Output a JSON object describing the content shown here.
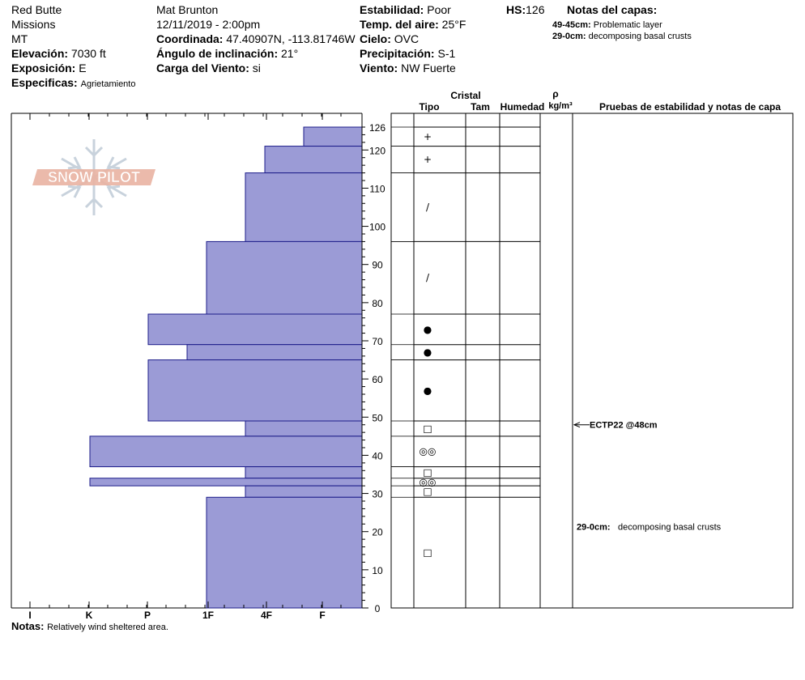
{
  "header": {
    "location": "Red Butte",
    "range": "Missions",
    "state": "MT",
    "elevation_label": "Elevación:",
    "elevation": "7030 ft",
    "aspect_label": "Exposición:",
    "aspect": "E",
    "specifics_label": "Especificas:",
    "specifics": "Agrietamiento",
    "observer": "Mat Brunton",
    "datetime": "12/11/2019 - 2:00pm",
    "coord_label": "Coordinada:",
    "coord": "47.40907N, -113.81746W",
    "slope_label": "Ángulo de inclinación:",
    "slope": "21°",
    "wind_load_label": "Carga del Viento:",
    "wind_load": "si",
    "stability_label": "Estabilidad:",
    "stability": "Poor",
    "air_temp_label": "Temp. del aire:",
    "air_temp": "25°F",
    "sky_label": "Cielo:",
    "sky": "OVC",
    "precip_label": "Precipitación:",
    "precip": "S-1",
    "wind_label": "Viento:",
    "wind": "NW Fuerte",
    "hs_label": "HS:",
    "hs": "126",
    "layer_notes_label": "Notas del capas:",
    "layer_notes": [
      {
        "depth": "49-45cm:",
        "text": "Problematic layer"
      },
      {
        "depth": "29-0cm:",
        "text": "decomposing basal crusts"
      }
    ]
  },
  "table_headers": {
    "crystal": "Cristal",
    "type": "Tipo",
    "size": "Tam",
    "moisture": "Humedad",
    "density_symbol": "ρ",
    "density_unit": "kg/m³",
    "tests": "Pruebas de estabilidad y notas de capa"
  },
  "logo_text": "SNOW PILOT",
  "chart_data": {
    "type": "bar",
    "ylim": [
      0,
      126
    ],
    "y_ticks": [
      0,
      10,
      20,
      30,
      40,
      50,
      60,
      70,
      80,
      90,
      100,
      110,
      120,
      126
    ],
    "hardness_ticks": [
      "I",
      "K",
      "P",
      "1F",
      "4F",
      "F"
    ],
    "hardness_scale_note": "hardness index 0 = I ... 6 = left edge",
    "layers": [
      {
        "top": 126,
        "bottom": 121,
        "hardness": 1,
        "grain": "+"
      },
      {
        "top": 121,
        "bottom": 114,
        "hardness": 2,
        "grain": "+"
      },
      {
        "top": 114,
        "bottom": 96,
        "hardness": 3,
        "grain": "/"
      },
      {
        "top": 96,
        "bottom": 77,
        "hardness": 4,
        "grain": "/"
      },
      {
        "top": 77,
        "bottom": 69,
        "hardness": 5.5,
        "grain": "●"
      },
      {
        "top": 69,
        "bottom": 65,
        "hardness": 4.5,
        "grain": "●"
      },
      {
        "top": 65,
        "bottom": 49,
        "hardness": 5.5,
        "grain": "●"
      },
      {
        "top": 49,
        "bottom": 45,
        "hardness": 3,
        "grain": "□"
      },
      {
        "top": 45,
        "bottom": 37,
        "hardness": 7,
        "grain": "◎◎"
      },
      {
        "top": 37,
        "bottom": 34,
        "hardness": 3,
        "grain": "□"
      },
      {
        "top": 34,
        "bottom": 32,
        "hardness": 7,
        "grain": "◎◎"
      },
      {
        "top": 32,
        "bottom": 29,
        "hardness": 3,
        "grain": "□"
      },
      {
        "top": 29,
        "bottom": 0,
        "hardness": 4,
        "grain": "□"
      }
    ],
    "tests": [
      {
        "depth": 48,
        "text": "ECTP22 @48cm"
      }
    ],
    "layer_comments": [
      {
        "depth": 12,
        "label": "29-0cm:",
        "text": "decomposing basal crusts"
      }
    ]
  },
  "notes": {
    "label": "Notas:",
    "text": "Relatively wind sheltered area."
  },
  "colors": {
    "bar_fill": "#9b9bd6",
    "bar_stroke": "#1c1c8a",
    "logo": "#e9b3a2",
    "snowflake": "#c8d2dc"
  }
}
